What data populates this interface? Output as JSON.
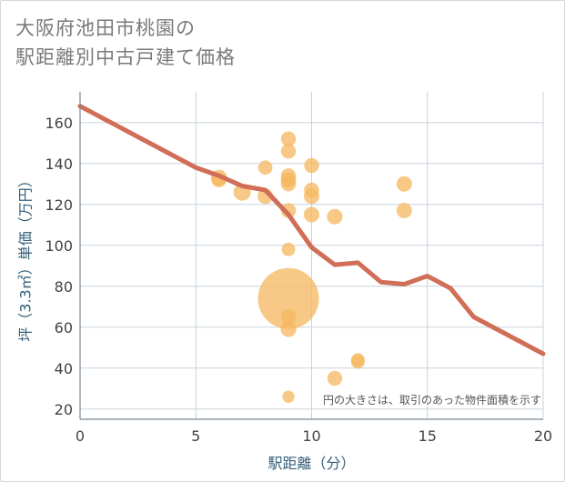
{
  "title_line1": "大阪府池田市桃園の",
  "title_line2": "駅距離別中古戸建て価格",
  "colors": {
    "bubble": "#f5b75e",
    "line": "#d06e57",
    "grid": "#c9d3dc",
    "axis_label": "#355f7a"
  },
  "chart_data": {
    "type": "scatter",
    "xlabel": "駅距離（分）",
    "ylabel": "坪（3.3㎡）単価（万円）",
    "xlim": [
      0,
      20
    ],
    "ylim": [
      15,
      175
    ],
    "x_ticks": [
      "0",
      "5",
      "10",
      "15",
      "20"
    ],
    "y_ticks": [
      "20",
      "40",
      "60",
      "80",
      "100",
      "120",
      "140",
      "160"
    ],
    "annotation": "円の大きさは、取引のあった物件面積を示す",
    "bubbles": [
      {
        "x": 6,
        "y": 133,
        "size": 1.4
      },
      {
        "x": 6,
        "y": 132,
        "size": 1.2
      },
      {
        "x": 7,
        "y": 126,
        "size": 1.6
      },
      {
        "x": 8,
        "y": 138,
        "size": 1.1
      },
      {
        "x": 8,
        "y": 124,
        "size": 1.3
      },
      {
        "x": 9,
        "y": 152,
        "size": 1.2
      },
      {
        "x": 9,
        "y": 146,
        "size": 1.2
      },
      {
        "x": 9,
        "y": 134,
        "size": 1.2
      },
      {
        "x": 9,
        "y": 132,
        "size": 1.3
      },
      {
        "x": 9,
        "y": 130,
        "size": 1.2
      },
      {
        "x": 9,
        "y": 117,
        "size": 1.2
      },
      {
        "x": 9,
        "y": 98,
        "size": 1.0
      },
      {
        "x": 9,
        "y": 74,
        "size": 20
      },
      {
        "x": 9,
        "y": 65,
        "size": 1.3
      },
      {
        "x": 9,
        "y": 59,
        "size": 1.3
      },
      {
        "x": 9,
        "y": 26,
        "size": 0.8
      },
      {
        "x": 10,
        "y": 139,
        "size": 1.2
      },
      {
        "x": 10,
        "y": 127,
        "size": 1.2
      },
      {
        "x": 10,
        "y": 124,
        "size": 1.3
      },
      {
        "x": 10,
        "y": 115,
        "size": 1.3
      },
      {
        "x": 11,
        "y": 114,
        "size": 1.3
      },
      {
        "x": 11,
        "y": 35,
        "size": 1.2
      },
      {
        "x": 12,
        "y": 44,
        "size": 1.0
      },
      {
        "x": 12,
        "y": 43,
        "size": 1.0
      },
      {
        "x": 14,
        "y": 130,
        "size": 1.3
      },
      {
        "x": 14,
        "y": 117,
        "size": 1.3
      }
    ],
    "line": {
      "x": [
        0,
        1,
        2,
        3,
        4,
        5,
        6,
        7,
        8,
        9,
        10,
        11,
        12,
        13,
        14,
        15,
        16,
        17,
        18,
        19,
        20
      ],
      "y": [
        168,
        162,
        156,
        150,
        144,
        138,
        134,
        129,
        127,
        115,
        99,
        90.5,
        91.5,
        82,
        81,
        85,
        79,
        65,
        59,
        53,
        47
      ]
    }
  }
}
